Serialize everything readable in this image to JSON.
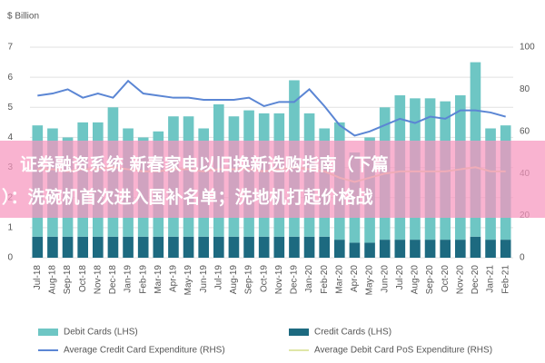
{
  "chart_data": {
    "type": "bar",
    "y_label": "$ Billion",
    "categories": [
      "Jul-18",
      "Aug-18",
      "Sep-18",
      "Oct-18",
      "Nov-18",
      "Dec-18",
      "Jan-19",
      "Feb-19",
      "Mar-19",
      "Apr-19",
      "May-19",
      "Jun-19",
      "Jul-19",
      "Aug-19",
      "Sep-19",
      "Oct-19",
      "Nov-19",
      "Dec-19",
      "Jan-20",
      "Feb-20",
      "Mar-20",
      "Apr-20",
      "May-20",
      "Jun-20",
      "Jul-20",
      "Aug-20",
      "Sep-20",
      "Oct-20",
      "Nov-20",
      "Dec-20",
      "Jan-21",
      "Feb-21"
    ],
    "series": [
      {
        "name": "Credit Cards (LHS)",
        "color": "#1d6a80",
        "values": [
          0.7,
          0.7,
          0.7,
          0.7,
          0.7,
          0.7,
          0.7,
          0.7,
          0.7,
          0.7,
          0.7,
          0.7,
          0.7,
          0.7,
          0.7,
          0.7,
          0.7,
          0.7,
          0.7,
          0.7,
          0.6,
          0.5,
          0.5,
          0.6,
          0.6,
          0.6,
          0.6,
          0.6,
          0.6,
          0.7,
          0.6,
          0.6
        ]
      },
      {
        "name": "Debit Cards (LHS)",
        "color": "#6ec6c4",
        "values": [
          3.7,
          3.6,
          3.3,
          3.8,
          3.8,
          4.3,
          3.6,
          3.3,
          3.5,
          4.0,
          4.0,
          3.6,
          4.4,
          4.0,
          4.2,
          4.1,
          4.1,
          5.2,
          4.1,
          3.6,
          3.9,
          3.0,
          3.5,
          4.4,
          4.8,
          4.7,
          4.7,
          4.6,
          4.8,
          5.8,
          3.7,
          3.8
        ]
      },
      {
        "name": "Average Credit Card Expenditure (RHS)",
        "color": "#5b86d4",
        "axis": "y2",
        "values": [
          77,
          78,
          80,
          76,
          78,
          76,
          84,
          78,
          77,
          76,
          76,
          75,
          75,
          75,
          76,
          72,
          74,
          74,
          80,
          72,
          63,
          58,
          60,
          63,
          66,
          64,
          67,
          66,
          70,
          70,
          69,
          67
        ]
      },
      {
        "name": "Average Debit Card PoS Expenditure (RHS)",
        "color": "#dfe6a8",
        "axis": "y2",
        "values": [
          42,
          42,
          41,
          42,
          42,
          43,
          42,
          41,
          41,
          42,
          42,
          41,
          42,
          42,
          42,
          41,
          42,
          43,
          42,
          41,
          38,
          36,
          38,
          40,
          41,
          41,
          41,
          41,
          42,
          43,
          41,
          41
        ]
      }
    ],
    "ylim": [
      0,
      7
    ],
    "yticks": [
      0,
      1,
      2,
      3,
      4,
      5,
      6,
      7
    ],
    "y2lim": [
      0,
      100
    ],
    "y2ticks": [
      0,
      20,
      40,
      60,
      80,
      100
    ],
    "grid": true,
    "legend": "bottom",
    "annotations": [
      "证券融资系统 新春家电以旧换新选购指南（下篇",
      "）：洗碗机首次进入国补名单；洗地机打起价格战"
    ]
  }
}
